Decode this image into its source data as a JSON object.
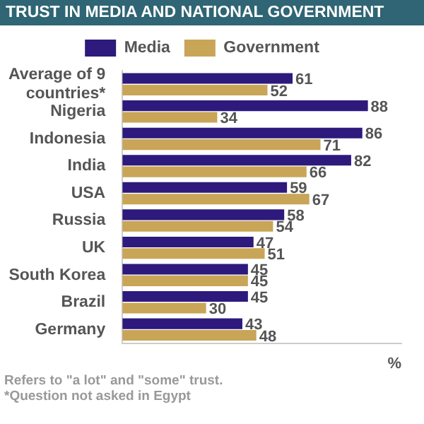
{
  "chart_data": {
    "type": "bar",
    "orientation": "horizontal",
    "title": "TRUST IN MEDIA AND NATIONAL GOVERNMENT",
    "xlabel": "%",
    "categories": [
      "Average of 9 countries*",
      "Nigeria",
      "Indonesia",
      "India",
      "USA",
      "Russia",
      "UK",
      "South Korea",
      "Brazil",
      "Germany"
    ],
    "series": [
      {
        "name": "Media",
        "color": "#2d1a7c",
        "values": [
          61,
          88,
          86,
          82,
          59,
          58,
          47,
          45,
          45,
          43
        ]
      },
      {
        "name": "Government",
        "color": "#c9a558",
        "values": [
          52,
          34,
          71,
          66,
          67,
          54,
          51,
          45,
          30,
          48
        ]
      }
    ],
    "data_labels": true,
    "legend": "top",
    "grid": false,
    "annotations": [
      "Refers to \"a lot\" and \"some\" trust.",
      "*Question not asked in Egypt"
    ]
  }
}
